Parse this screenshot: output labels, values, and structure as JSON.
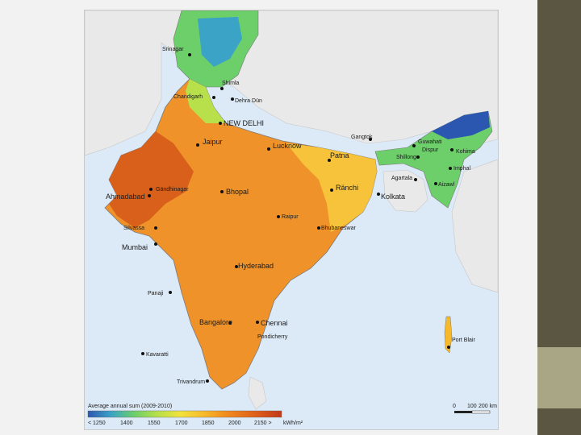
{
  "colors": {
    "sea": "#dce9f6",
    "neighbour_land": "#e9e9e9",
    "slide_background": "#f2f2f2",
    "side_bar": "#5b5642",
    "side_accent": "#a8a684",
    "legend_scale": [
      "#2c57b0",
      "#3aa3c6",
      "#6ccf6a",
      "#b8e04a",
      "#f2e23b",
      "#f7b92c",
      "#f08a1e",
      "#e0611a",
      "#c0391a"
    ]
  },
  "map": {
    "cities": [
      {
        "name": "Srinagar"
      },
      {
        "name": "Shimla"
      },
      {
        "name": "Chandigarh"
      },
      {
        "name": "Dehra Dün"
      },
      {
        "name": "NEW DELHI"
      },
      {
        "name": "Jaipur"
      },
      {
        "name": "Lucknow"
      },
      {
        "name": "Gangtok"
      },
      {
        "name": "Guwahati"
      },
      {
        "name": "Dispur"
      },
      {
        "name": "Shillong"
      },
      {
        "name": "Kohima"
      },
      {
        "name": "Imphal"
      },
      {
        "name": "Agartala"
      },
      {
        "name": "Aizawl"
      },
      {
        "name": "Patna"
      },
      {
        "name": "Ränchi"
      },
      {
        "name": "Kolkata"
      },
      {
        "name": "Gändhinagar"
      },
      {
        "name": "Ahmadabad"
      },
      {
        "name": "Bhopal"
      },
      {
        "name": "Raipur"
      },
      {
        "name": "Bhubaneswar"
      },
      {
        "name": "Silvassa"
      },
      {
        "name": "Mumbai"
      },
      {
        "name": "Hyderabad"
      },
      {
        "name": "Panaji"
      },
      {
        "name": "Bangalore"
      },
      {
        "name": "Chennai"
      },
      {
        "name": "Pondicherry"
      },
      {
        "name": "Kavaratti"
      },
      {
        "name": "Trivandrum"
      },
      {
        "name": "Port Blair"
      }
    ]
  },
  "legend": {
    "title": "Average annual sum (2009-2010)",
    "ticks": [
      "< 1250",
      "1400",
      "1550",
      "1700",
      "1850",
      "2000",
      "2150 >"
    ],
    "unit": "kWh/m²"
  },
  "scale_bar": {
    "labels": [
      "0",
      "100",
      "200 km"
    ]
  }
}
